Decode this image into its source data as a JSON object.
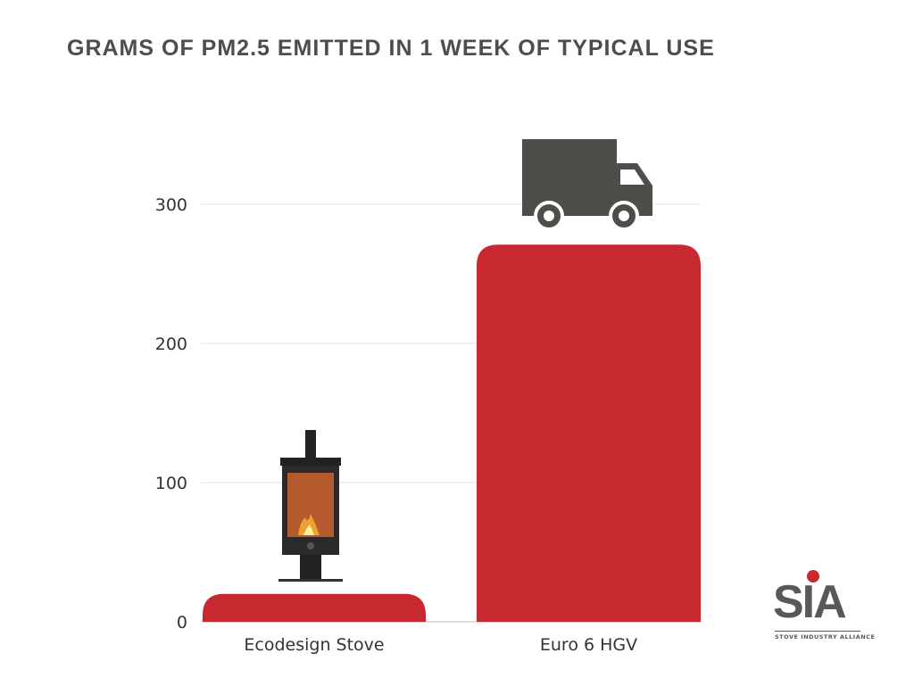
{
  "chart_data": {
    "type": "bar",
    "title": "GRAMS OF PM2.5 EMITTED IN 1 WEEK OF TYPICAL USE",
    "categories": [
      "Ecodesign Stove",
      "Euro 6 HGV"
    ],
    "values": [
      20,
      271
    ],
    "ylim": [
      0,
      340
    ],
    "yticks": [
      0,
      100,
      200,
      300
    ],
    "grid": true,
    "bar_color": "#c8282f",
    "icons": [
      "wood-stove-icon",
      "truck-icon"
    ]
  },
  "logo": {
    "text": "SIA",
    "subtitle": "STOVE INDUSTRY ALLIANCE",
    "accent": "#c8282f"
  }
}
